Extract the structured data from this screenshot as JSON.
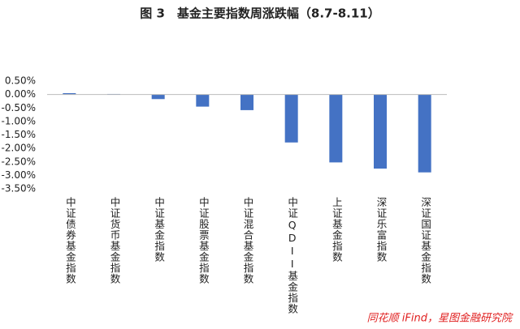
{
  "chart_data": {
    "type": "bar",
    "title": "图 3　基金主要指数周涨跌幅（8.7-8.11）",
    "source": "同花顺 iFind，星图金融研究院",
    "categories": [
      "中证债券基金指数",
      "中证货币基金指数",
      "中证基金指数",
      "中证股票基金指数",
      "中证混合基金指数",
      "中证QDII基金指数",
      "上证基金指数",
      "深证乐富指数",
      "深证国证基金指数"
    ],
    "values": [
      0.05,
      0.02,
      -0.17,
      -0.45,
      -0.58,
      -1.78,
      -2.52,
      -2.75,
      -2.89
    ],
    "color": "#4472c4",
    "ylim": [
      -3.5,
      0.5
    ],
    "yticks": [
      {
        "value": 0.5,
        "label": "0.50%"
      },
      {
        "value": 0,
        "label": "0.00%"
      },
      {
        "value": -0.5,
        "label": "-0.50%"
      },
      {
        "value": -1,
        "label": "-1.00%"
      },
      {
        "value": -1.5,
        "label": "-1.50%"
      },
      {
        "value": -2,
        "label": "-2.00%"
      },
      {
        "value": -2.5,
        "label": "-2.50%"
      },
      {
        "value": -3,
        "label": "-3.00%"
      },
      {
        "value": -3.5,
        "label": "-3.50%"
      }
    ],
    "grid": false
  }
}
